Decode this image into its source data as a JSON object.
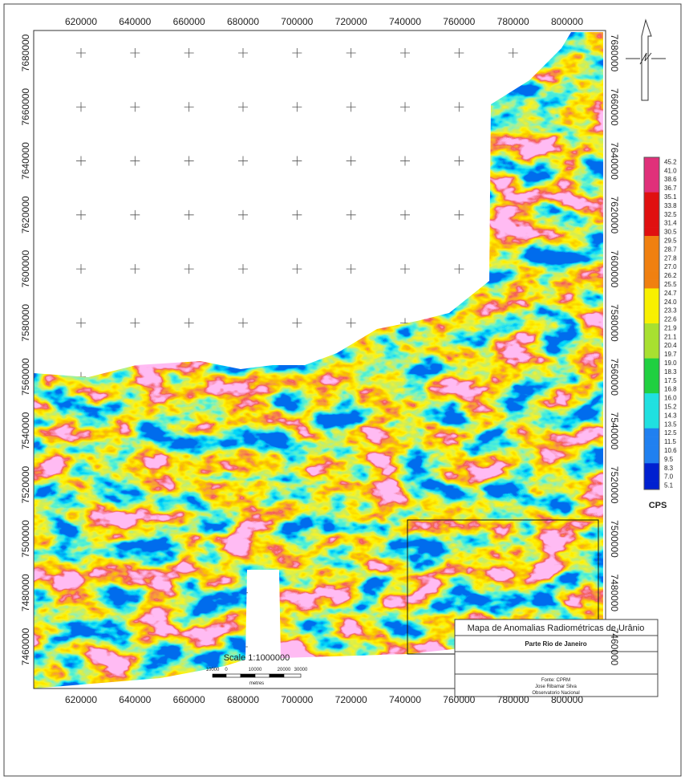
{
  "map": {
    "xticks": [
      620000,
      640000,
      660000,
      680000,
      700000,
      720000,
      740000,
      760000,
      780000,
      800000
    ],
    "yticks": [
      7460000,
      7480000,
      7500000,
      7520000,
      7540000,
      7560000,
      7580000,
      7600000,
      7620000,
      7640000,
      7660000,
      7680000
    ],
    "legend": {
      "labels": [
        "45.2",
        "41.0",
        "38.6",
        "36.7",
        "35.1",
        "33.8",
        "32.5",
        "31.4",
        "30.5",
        "29.5",
        "28.7",
        "27.8",
        "27.0",
        "26.2",
        "25.5",
        "24.7",
        "24.0",
        "23.3",
        "22.6",
        "21.9",
        "21.1",
        "20.4",
        "19.7",
        "19.0",
        "18.3",
        "17.5",
        "16.8",
        "16.0",
        "15.2",
        "14.3",
        "13.5",
        "12.5",
        "11.5",
        "10.6",
        "9.5",
        "8.3",
        "7.0",
        "5.1"
      ],
      "unit": "CPS"
    },
    "scale": {
      "title": "Scale 1:1000000",
      "labels": [
        "10000",
        "0",
        "10000",
        "20000",
        "30000"
      ],
      "unit": "metres"
    },
    "title_box": {
      "title": "Mapa de Anomalias Radiométricas de Urânio",
      "subtitle": "Parte Rio de Janeiro",
      "credits": [
        "Fonte: CPRM",
        "Jose Ribamar Silva",
        "Observatorio Nacional"
      ]
    }
  }
}
